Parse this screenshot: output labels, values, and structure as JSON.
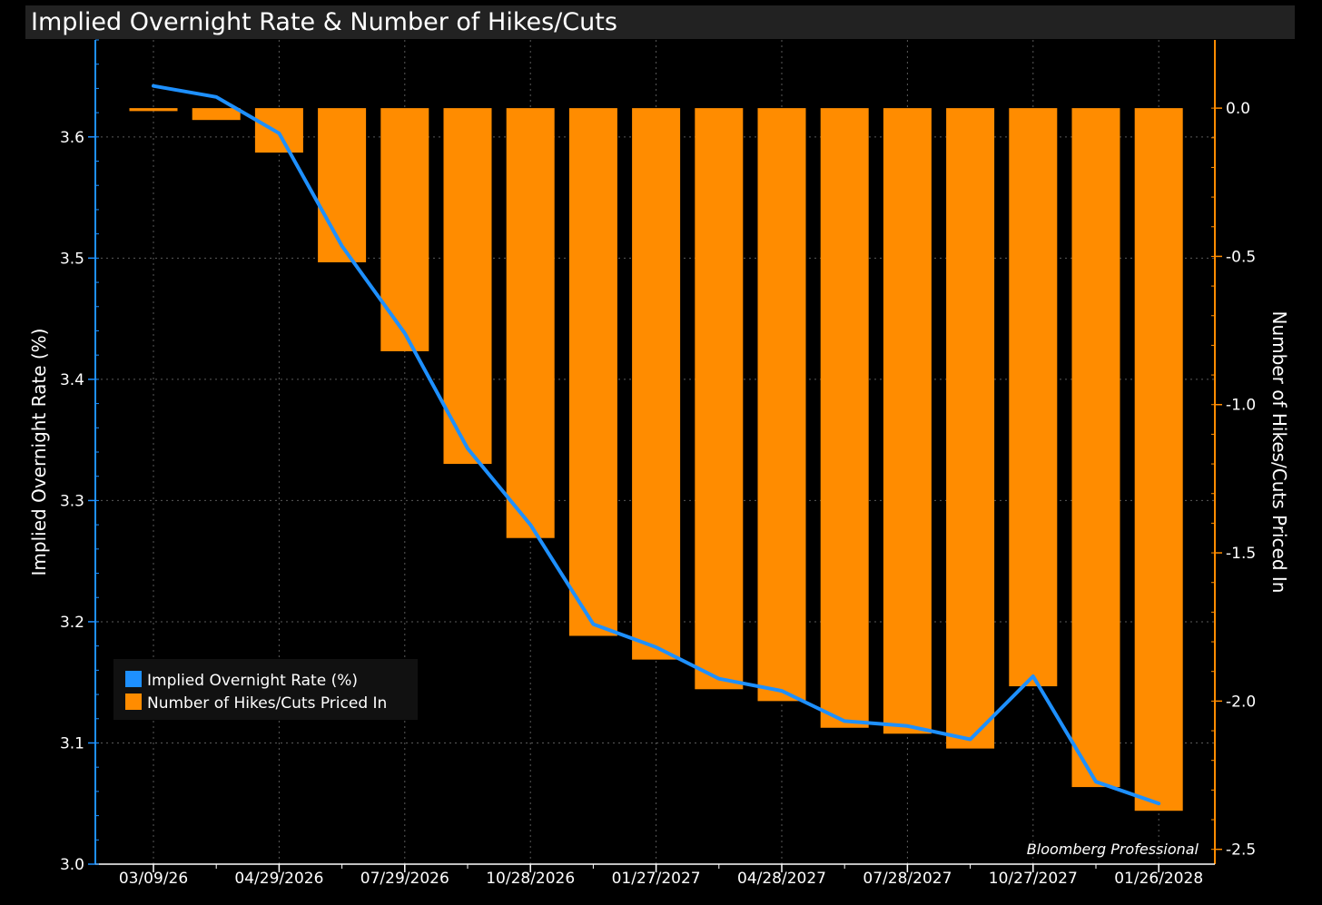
{
  "chart_data": {
    "type": "bar+line",
    "title": "Implied Overnight Rate & Number of Hikes/Cuts",
    "ylabel_left": "Implied Overnight Rate (%)",
    "ylabel_right": "Number of Hikes/Cuts Priced In",
    "ylim_left": [
      3.0,
      3.68
    ],
    "ylim_right": [
      -2.55,
      0.23
    ],
    "yticks_left": [
      "3.0",
      "3.1",
      "3.2",
      "3.3",
      "3.4",
      "3.5",
      "3.6"
    ],
    "yticks_right": [
      "0.0",
      "-0.5",
      "-1.0",
      "-1.5",
      "-2.0",
      "-2.5"
    ],
    "xtick_labels": [
      "03/09/26",
      "04/29/2026",
      "07/29/2026",
      "10/28/2026",
      "01/27/2027",
      "04/28/2027",
      "07/28/2027",
      "10/27/2027",
      "01/26/2028"
    ],
    "grid": true,
    "legend_position": "lower-left",
    "series": [
      {
        "name": "Implied Overnight Rate (%)",
        "type": "line",
        "axis": "left",
        "color": "#1e90ff",
        "values": [
          3.642,
          3.633,
          3.603,
          3.51,
          3.438,
          3.343,
          3.28,
          3.198,
          3.179,
          3.153,
          3.143,
          3.118,
          3.114,
          3.103,
          3.155,
          3.068,
          3.05
        ]
      },
      {
        "name": "Number of Hikes/Cuts Priced In",
        "type": "bar",
        "axis": "right",
        "color": "#ff8c00",
        "values": [
          -0.01,
          -0.04,
          -0.15,
          -0.52,
          -0.82,
          -1.2,
          -1.45,
          -1.78,
          -1.86,
          -1.96,
          -2.0,
          -2.09,
          -2.11,
          -2.16,
          -1.95,
          -2.29,
          -2.37
        ]
      }
    ]
  },
  "source_label": "Bloomberg Professional"
}
